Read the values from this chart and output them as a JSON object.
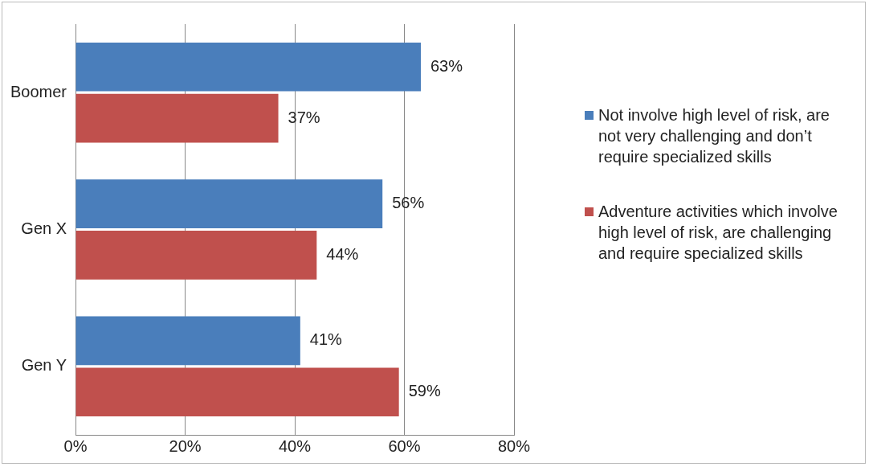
{
  "chart_data": {
    "type": "bar",
    "orientation": "horizontal",
    "categories": [
      "Boomer",
      "Gen X",
      "Gen Y"
    ],
    "series": [
      {
        "name": "Not involve high level of risk, are not very challenging and don’t require specialized skills",
        "color": "#4a7ebb",
        "values": [
          63,
          56,
          41
        ],
        "value_labels": [
          "63%",
          "56%",
          "41%"
        ]
      },
      {
        "name": "Adventure activities which involve high level of risk, are challenging and require specialized skills",
        "color": "#c0504d",
        "values": [
          37,
          44,
          59
        ],
        "value_labels": [
          "37%",
          "44%",
          "59%"
        ]
      }
    ],
    "xlim": [
      0,
      80
    ],
    "xticks": [
      {
        "value": 0,
        "label": "0%"
      },
      {
        "value": 20,
        "label": "20%"
      },
      {
        "value": 40,
        "label": "40%"
      },
      {
        "value": 60,
        "label": "60%"
      },
      {
        "value": 80,
        "label": "80%"
      }
    ],
    "grid": "x",
    "legend": "right"
  }
}
